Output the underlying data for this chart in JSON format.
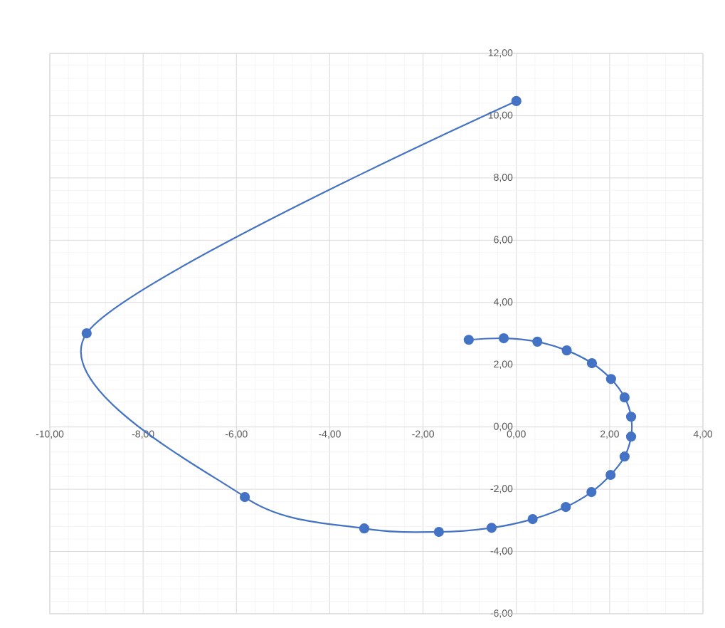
{
  "chart_data": {
    "type": "scatter",
    "series": [
      {
        "color": "#4472c4",
        "type": "line",
        "x": [
          0.0,
          -9.21,
          -5.82,
          -3.26,
          -1.66,
          -0.53,
          0.35,
          1.06,
          1.61,
          2.02,
          2.32,
          2.46,
          2.46,
          2.32,
          2.03,
          1.62,
          1.08,
          0.45,
          -0.27,
          -1.02
        ],
        "values": [
          10.47,
          3.01,
          -2.25,
          -3.26,
          -3.37,
          -3.24,
          -2.96,
          -2.57,
          -2.09,
          -1.54,
          -0.95,
          -0.31,
          0.33,
          0.95,
          1.54,
          2.05,
          2.46,
          2.74,
          2.85,
          2.8
        ]
      }
    ],
    "marker": "circle",
    "line_style": "solid",
    "grid": true,
    "xlim": [
      -10,
      4
    ],
    "ylim": [
      -6,
      12
    ],
    "xticks": [
      {
        "value": -10,
        "label": "-10,00"
      },
      {
        "value": -8,
        "label": "-8,00"
      },
      {
        "value": -6,
        "label": "-6,00"
      },
      {
        "value": -4,
        "label": "-4,00"
      },
      {
        "value": -2,
        "label": "-2,00"
      },
      {
        "value": 0,
        "label": "0,00"
      },
      {
        "value": 2,
        "label": "2,00"
      },
      {
        "value": 4,
        "label": "4,00"
      }
    ],
    "yticks": [
      {
        "value": -6,
        "label": "-6,00"
      },
      {
        "value": -4,
        "label": "-4,00"
      },
      {
        "value": -2,
        "label": "-2,00"
      },
      {
        "value": 0,
        "label": "0,00"
      },
      {
        "value": 2,
        "label": "2,00"
      },
      {
        "value": 4,
        "label": "4,00"
      },
      {
        "value": 6,
        "label": "6,00"
      },
      {
        "value": 8,
        "label": "8,00"
      },
      {
        "value": 10,
        "label": "10,00"
      },
      {
        "value": 12,
        "label": "12,00"
      }
    ]
  }
}
